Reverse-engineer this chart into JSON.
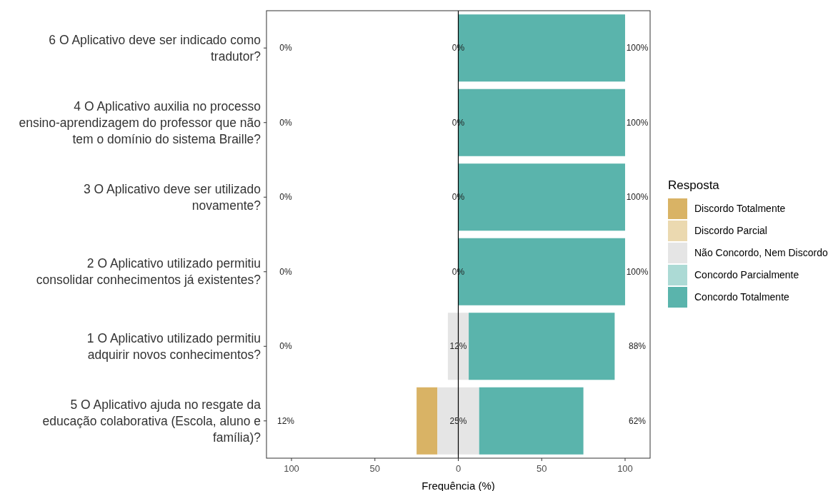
{
  "chart_data": {
    "type": "bar",
    "orientation": "horizontal",
    "xlabel": "Frequência (%)",
    "legend_title": "Resposta",
    "legend": "right",
    "grid": false,
    "categories": [
      "6 O Aplicativo deve ser indicado como tradutor?",
      "4 O Aplicativo auxilia no processo ensino-aprendizagem do professor que não tem o domínio do sistema Braille?",
      "3 O Aplicativo deve ser utilizado novamente?",
      "2 O Aplicativo utilizado permitiu consolidar conhecimentos já existentes?",
      "1 O Aplicativo utilizado permitiu adquirir novos conhecimentos?",
      "5 O Aplicativo ajuda no resgate da educação colaborativa (Escola, aluno e família)?"
    ],
    "xlim": [
      -115,
      115
    ],
    "xticks": [
      {
        "value": -100,
        "label": "100"
      },
      {
        "value": -50,
        "label": "50"
      },
      0,
      50,
      100
    ],
    "ref_lines": [
      {
        "axis": "x",
        "value": 0,
        "color": "#000000"
      }
    ],
    "series": [
      {
        "name": "Discordo Totalmente",
        "color": "#d9b365",
        "base": [
          null,
          null,
          null,
          null,
          null,
          -25
        ],
        "values": [
          null,
          null,
          null,
          null,
          null,
          12.5
        ]
      },
      {
        "name": "Discordo Parcial",
        "color": "#ebd9b0",
        "values": [
          null,
          null,
          null,
          null,
          null,
          null
        ]
      },
      {
        "name": "Não Concordo, Nem Discordo",
        "color": "#e5e5e5",
        "base": [
          null,
          null,
          null,
          null,
          -6.25,
          -12.5
        ],
        "values": [
          null,
          null,
          null,
          null,
          12.5,
          25
        ]
      },
      {
        "name": "Concordo Parcialmente",
        "color": "#acdad5",
        "values": [
          null,
          null,
          null,
          null,
          null,
          null
        ]
      },
      {
        "name": "Concordo Totalmente",
        "color": "#5ab4ac",
        "base": [
          0,
          0,
          0,
          0,
          6.25,
          12.5
        ],
        "values": [
          100,
          100,
          100,
          100,
          87.5,
          62.5
        ]
      }
    ],
    "annotations": [
      "0%",
      "0%",
      "100%",
      "0%",
      "0%",
      "100%",
      "0%",
      "0%",
      "100%",
      "0%",
      "0%",
      "100%",
      "0%",
      "12%",
      "88%",
      "12%",
      "25%",
      "62%"
    ]
  }
}
